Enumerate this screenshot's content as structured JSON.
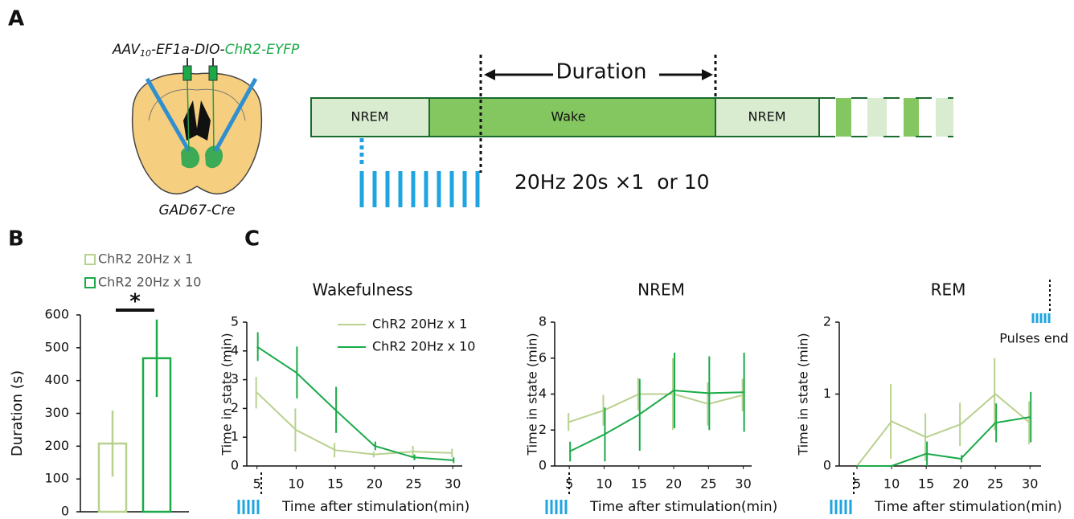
{
  "panel_labels": [
    "A",
    "B",
    "C"
  ],
  "diagram": {
    "virus": [
      "AAV",
      "10",
      "-EF1a-DIO-",
      "ChR2-EYFP"
    ],
    "mouse_line": "GAD67-Cre",
    "states": [
      "NREM",
      "Wake",
      "NREM"
    ],
    "duration": "Duration",
    "protocol": "20Hz 20s ×1  or 10"
  },
  "chart_data": [
    {
      "type": "bar",
      "y_label": "Duration (s)",
      "series": [
        {
          "name": "ChR2 20Hz x 1",
          "color": "#b8d18f",
          "values": [
            208
          ],
          "errors": [
            101
          ]
        },
        {
          "name": "ChR2 20Hz x 10",
          "color": "#1aaa48",
          "values": [
            468
          ],
          "errors": [
            118
          ]
        }
      ],
      "ylim": [
        0,
        600
      ],
      "yticks": [
        0,
        100,
        200,
        300,
        400,
        500,
        600
      ],
      "significance": "*"
    },
    {
      "type": "line",
      "title": "Wakefulness",
      "x_label": "Time after stimulation(min)",
      "y_label": "Time in state (min)",
      "x": [
        5,
        10,
        15,
        20,
        25,
        30
      ],
      "series": [
        {
          "name": "ChR2 20Hz x 1",
          "color": "#b8d18f",
          "values": [
            2.55,
            1.25,
            0.55,
            0.4,
            0.5,
            0.45
          ],
          "errors": [
            0.55,
            0.75,
            0.25,
            0.1,
            0.2,
            0.15
          ]
        },
        {
          "name": "ChR2 20Hz x 10",
          "color": "#1aaa48",
          "values": [
            4.15,
            3.25,
            1.95,
            0.7,
            0.3,
            0.2
          ],
          "errors": [
            0.5,
            0.9,
            0.8,
            0.15,
            0.1,
            0.1
          ]
        }
      ],
      "xlim": [
        3.7,
        31.2
      ],
      "xticks": [
        5,
        10,
        15,
        20,
        25,
        30
      ],
      "ylim": [
        0,
        5
      ],
      "yticks": [
        0,
        1,
        2,
        3,
        4,
        5
      ],
      "legend": "top-right"
    },
    {
      "type": "line",
      "title": "NREM",
      "x_label": "Time after stimulation(min)",
      "y_label": "Time in state (min)",
      "x": [
        5,
        10,
        15,
        20,
        25,
        30
      ],
      "series": [
        {
          "name": "ChR2 20Hz x 1",
          "color": "#b8d18f",
          "values": [
            2.45,
            3.1,
            4.0,
            4.0,
            3.45,
            3.95
          ],
          "errors": [
            0.5,
            0.85,
            0.9,
            2.0,
            1.2,
            0.9
          ]
        },
        {
          "name": "ChR2 20Hz x 10",
          "color": "#1aaa48",
          "values": [
            0.8,
            1.75,
            2.85,
            4.2,
            4.05,
            4.1
          ],
          "errors": [
            0.55,
            1.5,
            2.0,
            2.1,
            2.05,
            2.2
          ]
        }
      ],
      "xlim": [
        2.9,
        31.2
      ],
      "xticks": [
        5,
        10,
        15,
        20,
        25,
        30
      ],
      "ylim": [
        0,
        8
      ],
      "yticks": [
        0,
        2,
        4,
        6,
        8
      ]
    },
    {
      "type": "line",
      "title": "REM",
      "x_label": "Time after stimulation(min)",
      "y_label": "Time in state (min)",
      "x": [
        5,
        10,
        15,
        20,
        25,
        30
      ],
      "series": [
        {
          "name": "ChR2 20Hz x 1",
          "color": "#b8d18f",
          "values": [
            0,
            0.62,
            0.4,
            0.58,
            1.0,
            0.6
          ],
          "errors": [
            0,
            0.52,
            0.33,
            0.3,
            0.5,
            0.3
          ]
        },
        {
          "name": "ChR2 20Hz x 10",
          "color": "#1aaa48",
          "values": [
            0,
            0,
            0.17,
            0.1,
            0.6,
            0.68
          ],
          "errors": [
            0,
            0,
            0.17,
            0.05,
            0.27,
            0.35
          ]
        }
      ],
      "xlim": [
        2.44,
        31.6
      ],
      "xticks": [
        5,
        10,
        15,
        20,
        25,
        30
      ],
      "ylim": [
        0,
        2
      ],
      "yticks": [
        0,
        1,
        2
      ],
      "annotation": "Pulses end"
    }
  ]
}
